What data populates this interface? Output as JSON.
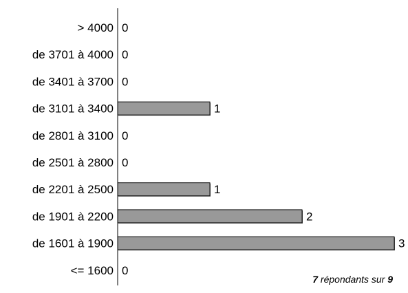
{
  "chart_data": {
    "type": "bar",
    "orientation": "horizontal",
    "categories": [
      "> 4000",
      "de 3701 à 4000",
      "de 3401 à 3700",
      "de 3101 à 3400",
      "de 2801 à 3100",
      "de 2501 à 2800",
      "de 2201 à 2500",
      "de 1901 à 2200",
      "de 1601 à 1900",
      "<= 1600"
    ],
    "values": [
      0,
      0,
      0,
      1,
      0,
      0,
      1,
      2,
      3,
      0
    ],
    "xlim": [
      0,
      3
    ],
    "grid": false,
    "legend": false,
    "bar_color": "#999999",
    "bar_shadow_color": "#4d4d4d"
  },
  "footnote": {
    "count": "7",
    "middle": " répondants sur ",
    "total": "9"
  }
}
